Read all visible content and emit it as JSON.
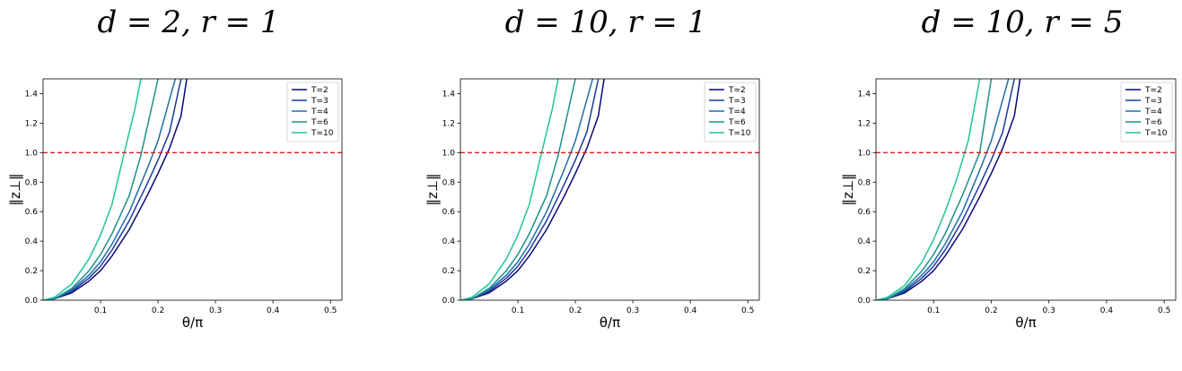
{
  "chart_data": [
    {
      "type": "line",
      "title": "d = 2, r = 1",
      "xlabel": "θ/π",
      "ylabel": "‖z⊥‖",
      "xlim": [
        0,
        0.52
      ],
      "ylim": [
        0,
        1.5
      ],
      "xticks": [
        0.1,
        0.2,
        0.3,
        0.4,
        0.5
      ],
      "xtick_labels": [
        "0.1",
        "0.2",
        "0.3",
        "0.4",
        "0.5"
      ],
      "yticks": [
        0.0,
        0.2,
        0.4,
        0.6,
        0.8,
        1.0,
        1.2,
        1.4
      ],
      "ytick_labels": [
        "0.0",
        "0.2",
        "0.4",
        "0.6",
        "0.8",
        "1.0",
        "1.2",
        "1.4"
      ],
      "legend_position": "top-right",
      "reference_line": {
        "y": 1.0,
        "color": "#e31a1c",
        "style": "dashed"
      },
      "series": [
        {
          "name": "T=2",
          "color": "#08087a",
          "x": [
            0,
            0.02,
            0.05,
            0.08,
            0.1,
            0.12,
            0.15,
            0.18,
            0.2,
            0.22,
            0.24,
            0.25
          ],
          "y": [
            0,
            0.01,
            0.05,
            0.13,
            0.2,
            0.3,
            0.48,
            0.7,
            0.86,
            1.03,
            1.25,
            1.5
          ]
        },
        {
          "name": "T=3",
          "color": "#1b3a9e",
          "x": [
            0,
            0.02,
            0.05,
            0.08,
            0.1,
            0.12,
            0.15,
            0.18,
            0.2,
            0.22,
            0.24
          ],
          "y": [
            0,
            0.01,
            0.06,
            0.15,
            0.23,
            0.34,
            0.54,
            0.78,
            0.95,
            1.14,
            1.5
          ]
        },
        {
          "name": "T=4",
          "color": "#1f6fa8",
          "x": [
            0,
            0.02,
            0.05,
            0.08,
            0.1,
            0.12,
            0.15,
            0.18,
            0.2,
            0.23
          ],
          "y": [
            0,
            0.01,
            0.07,
            0.17,
            0.26,
            0.38,
            0.6,
            0.88,
            1.08,
            1.5
          ]
        },
        {
          "name": "T=6",
          "color": "#1a8f8a",
          "x": [
            0,
            0.02,
            0.05,
            0.08,
            0.1,
            0.12,
            0.15,
            0.17,
            0.2
          ],
          "y": [
            0,
            0.01,
            0.08,
            0.2,
            0.31,
            0.45,
            0.71,
            0.98,
            1.5
          ]
        },
        {
          "name": "T=10",
          "color": "#20c49a",
          "x": [
            0,
            0.02,
            0.05,
            0.08,
            0.1,
            0.12,
            0.14,
            0.16,
            0.17
          ],
          "y": [
            0,
            0.02,
            0.11,
            0.28,
            0.44,
            0.65,
            0.98,
            1.3,
            1.5
          ]
        }
      ]
    },
    {
      "type": "line",
      "title": "d = 10, r = 1",
      "xlabel": "θ/π",
      "ylabel": "‖z⊥‖",
      "xlim": [
        0,
        0.52
      ],
      "ylim": [
        0,
        1.5
      ],
      "xticks": [
        0.1,
        0.2,
        0.3,
        0.4,
        0.5
      ],
      "xtick_labels": [
        "0.1",
        "0.2",
        "0.3",
        "0.4",
        "0.5"
      ],
      "yticks": [
        0.0,
        0.2,
        0.4,
        0.6,
        0.8,
        1.0,
        1.2,
        1.4
      ],
      "ytick_labels": [
        "0.0",
        "0.2",
        "0.4",
        "0.6",
        "0.8",
        "1.0",
        "1.2",
        "1.4"
      ],
      "legend_position": "top-right",
      "reference_line": {
        "y": 1.0,
        "color": "#e31a1c",
        "style": "dashed"
      },
      "series": [
        {
          "name": "T=2",
          "color": "#08087a",
          "x": [
            0,
            0.02,
            0.05,
            0.08,
            0.1,
            0.12,
            0.15,
            0.18,
            0.2,
            0.22,
            0.24,
            0.25
          ],
          "y": [
            0,
            0.01,
            0.05,
            0.13,
            0.2,
            0.3,
            0.48,
            0.7,
            0.86,
            1.03,
            1.25,
            1.5
          ]
        },
        {
          "name": "T=3",
          "color": "#1b3a9e",
          "x": [
            0,
            0.02,
            0.05,
            0.08,
            0.1,
            0.12,
            0.15,
            0.18,
            0.2,
            0.22,
            0.24
          ],
          "y": [
            0,
            0.01,
            0.06,
            0.15,
            0.23,
            0.34,
            0.54,
            0.78,
            0.95,
            1.14,
            1.5
          ]
        },
        {
          "name": "T=4",
          "color": "#1f6fa8",
          "x": [
            0,
            0.02,
            0.05,
            0.08,
            0.1,
            0.12,
            0.15,
            0.18,
            0.2,
            0.23
          ],
          "y": [
            0,
            0.01,
            0.07,
            0.17,
            0.26,
            0.38,
            0.6,
            0.88,
            1.08,
            1.5
          ]
        },
        {
          "name": "T=6",
          "color": "#1a8f8a",
          "x": [
            0,
            0.02,
            0.05,
            0.08,
            0.1,
            0.12,
            0.15,
            0.17,
            0.2
          ],
          "y": [
            0,
            0.01,
            0.08,
            0.2,
            0.31,
            0.45,
            0.71,
            0.98,
            1.5
          ]
        },
        {
          "name": "T=10",
          "color": "#20c49a",
          "x": [
            0,
            0.02,
            0.05,
            0.08,
            0.1,
            0.12,
            0.14,
            0.16,
            0.17
          ],
          "y": [
            0,
            0.02,
            0.11,
            0.28,
            0.44,
            0.65,
            0.98,
            1.3,
            1.5
          ]
        }
      ]
    },
    {
      "type": "line",
      "title": "d = 10, r = 5",
      "xlabel": "θ/π",
      "ylabel": "‖z⊥‖",
      "xlim": [
        0,
        0.52
      ],
      "ylim": [
        0,
        1.5
      ],
      "xticks": [
        0.1,
        0.2,
        0.3,
        0.4,
        0.5
      ],
      "xtick_labels": [
        "0.1",
        "0.2",
        "0.3",
        "0.4",
        "0.5"
      ],
      "yticks": [
        0.0,
        0.2,
        0.4,
        0.6,
        0.8,
        1.0,
        1.2,
        1.4
      ],
      "ytick_labels": [
        "0.0",
        "0.2",
        "0.4",
        "0.6",
        "0.8",
        "1.0",
        "1.2",
        "1.4"
      ],
      "legend_position": "top-right",
      "reference_line": {
        "y": 1.0,
        "color": "#e31a1c",
        "style": "dashed"
      },
      "series": [
        {
          "name": "T=2",
          "color": "#08087a",
          "x": [
            0,
            0.02,
            0.05,
            0.08,
            0.1,
            0.12,
            0.15,
            0.18,
            0.2,
            0.22,
            0.24,
            0.25
          ],
          "y": [
            0,
            0.01,
            0.05,
            0.13,
            0.2,
            0.3,
            0.48,
            0.7,
            0.86,
            1.03,
            1.25,
            1.5
          ]
        },
        {
          "name": "T=3",
          "color": "#1b3a9e",
          "x": [
            0,
            0.02,
            0.05,
            0.08,
            0.1,
            0.12,
            0.15,
            0.18,
            0.2,
            0.22,
            0.24
          ],
          "y": [
            0,
            0.01,
            0.06,
            0.15,
            0.23,
            0.34,
            0.54,
            0.78,
            0.95,
            1.14,
            1.5
          ]
        },
        {
          "name": "T=4",
          "color": "#1f6fa8",
          "x": [
            0,
            0.02,
            0.05,
            0.08,
            0.1,
            0.12,
            0.15,
            0.18,
            0.2,
            0.23
          ],
          "y": [
            0,
            0.01,
            0.07,
            0.17,
            0.26,
            0.38,
            0.6,
            0.88,
            1.08,
            1.5
          ]
        },
        {
          "name": "T=6",
          "color": "#1a8f8a",
          "x": [
            0,
            0.02,
            0.05,
            0.08,
            0.1,
            0.12,
            0.15,
            0.18,
            0.2
          ],
          "y": [
            0,
            0.01,
            0.08,
            0.2,
            0.31,
            0.45,
            0.71,
            1.0,
            1.5
          ]
        },
        {
          "name": "T=10",
          "color": "#20c49a",
          "x": [
            0,
            0.02,
            0.05,
            0.08,
            0.1,
            0.12,
            0.14,
            0.16,
            0.18
          ],
          "y": [
            0,
            0.02,
            0.1,
            0.26,
            0.41,
            0.6,
            0.82,
            1.08,
            1.5
          ]
        }
      ]
    }
  ]
}
